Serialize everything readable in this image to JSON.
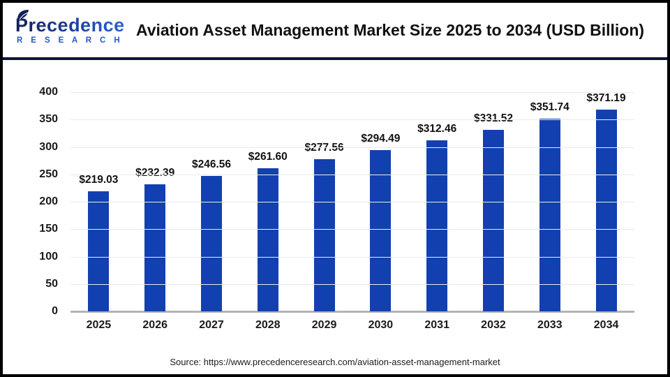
{
  "logo": {
    "name": "Precedence",
    "subtitle": "R E S E A R C H"
  },
  "header": {
    "title": "Aviation Asset Management Market Size 2025 to 2034 (USD Billion)"
  },
  "chart_data": {
    "type": "bar",
    "title": "Aviation Asset Management Market Size 2025 to 2034 (USD Billion)",
    "categories": [
      "2025",
      "2026",
      "2027",
      "2028",
      "2029",
      "2030",
      "2031",
      "2032",
      "2033",
      "2034"
    ],
    "values": [
      219.03,
      232.39,
      246.56,
      261.6,
      277.56,
      294.49,
      312.46,
      331.52,
      351.74,
      371.19
    ],
    "data_labels": [
      "$219.03",
      "$232.39",
      "$246.56",
      "$261.60",
      "$277.56",
      "$294.49",
      "$312.46",
      "$331.52",
      "$351.74",
      "$371.19"
    ],
    "xlabel": "",
    "ylabel": "",
    "ylim": [
      0,
      400
    ],
    "yticks": [
      0,
      50,
      100,
      150,
      200,
      250,
      300,
      350,
      400
    ],
    "grid": true,
    "legend_position": "none",
    "colors": {
      "bar": "#1340b0",
      "gridline": "#eaeaea",
      "axis_line": "#b3b3b3",
      "divider_navy": "#0c1540",
      "logo_navy": "#13205a",
      "logo_blue": "#2a64d8"
    }
  },
  "footer": {
    "source": "Source: https://www.precedenceresearch.com/aviation-asset-management-market"
  }
}
